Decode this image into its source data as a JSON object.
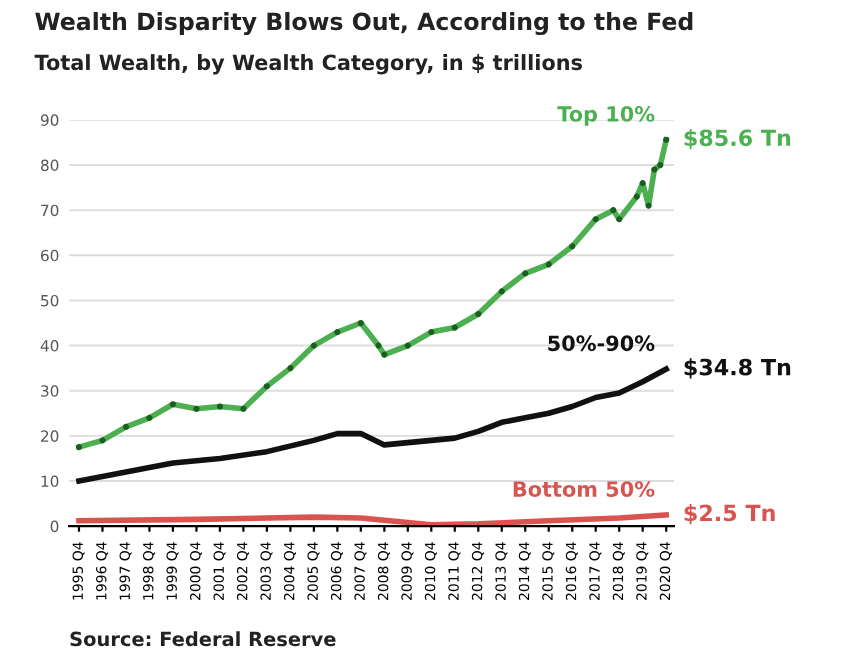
{
  "chart_data": {
    "type": "line",
    "title": "Wealth Disparity Blows Out, According to the Fed",
    "subtitle": "Total Wealth, by Wealth Category, in $ trillions",
    "series": [
      {
        "name": "Top 10%",
        "color": "#4caf50",
        "marker": "circle",
        "x": [
          "1995-11",
          "1996-11",
          "1997-11",
          "1998-11",
          "1999-11",
          "2000-11",
          "2001-11",
          "2002-11",
          "2003-11",
          "2004-11",
          "2005-11",
          "2006-11",
          "2007-11",
          "2008-08",
          "2008-11",
          "2009-11",
          "2010-11",
          "2011-11",
          "2012-11",
          "2013-11",
          "2014-11",
          "2015-11",
          "2016-11",
          "2017-11",
          "2018-08",
          "2018-11",
          "2019-08",
          "2019-11",
          "2020-02",
          "2020-05",
          "2020-08",
          "2020-11"
        ],
        "values": [
          17.5,
          19,
          22,
          24,
          27,
          26,
          26.5,
          26,
          31,
          35,
          40,
          43,
          45,
          40,
          38,
          40,
          43,
          44,
          47,
          52,
          56,
          58,
          62,
          68,
          70,
          68,
          73,
          76,
          71,
          79,
          80,
          85.6
        ]
      },
      {
        "name": "50%-90%",
        "color": "#111111",
        "marker": "none",
        "x": [
          "1995-11",
          "1997-11",
          "1999-11",
          "2001-11",
          "2003-11",
          "2005-11",
          "2006-11",
          "2007-11",
          "2008-11",
          "2009-11",
          "2010-11",
          "2011-11",
          "2012-11",
          "2013-11",
          "2014-11",
          "2015-11",
          "2016-11",
          "2017-11",
          "2018-11",
          "2019-11",
          "2020-11"
        ],
        "values": [
          10,
          12,
          14,
          15,
          16.5,
          19,
          20.5,
          20.5,
          18,
          18.5,
          19,
          19.5,
          21,
          23,
          24,
          25,
          26.5,
          28.5,
          29.5,
          32,
          34.8
        ]
      },
      {
        "name": "Bottom 50%",
        "color": "#d9534f",
        "marker": "none",
        "x": [
          "1995-11",
          "2000-11",
          "2005-11",
          "2007-11",
          "2010-11",
          "2012-11",
          "2015-11",
          "2018-11",
          "2020-11"
        ],
        "values": [
          1.2,
          1.5,
          2,
          1.8,
          0.3,
          0.5,
          1.2,
          1.8,
          2.5
        ]
      }
    ],
    "annotations": [
      {
        "text": "$85.6 Tn",
        "x": "2020-11",
        "y": 85.6
      },
      {
        "text": "$34.8 Tn",
        "x": "2020-11",
        "y": 34.8
      },
      {
        "text": "$2.5 Tn",
        "x": "2020-11",
        "y": 2.5
      },
      "Source: Federal Reserve"
    ],
    "xlim": [
      "1995-06",
      "2021-03"
    ],
    "xticks": [
      {
        "value": "1995-11",
        "label": "1995 Q4"
      },
      {
        "value": "1996-11",
        "label": "1996 Q4"
      },
      {
        "value": "1997-11",
        "label": "1997 Q4"
      },
      {
        "value": "1998-11",
        "label": "1998 Q4"
      },
      {
        "value": "1999-11",
        "label": "1999 Q4"
      },
      {
        "value": "2000-11",
        "label": "2000 Q4"
      },
      {
        "value": "2001-11",
        "label": "2001 Q4"
      },
      {
        "value": "2002-11",
        "label": "2002 Q4"
      },
      {
        "value": "2003-11",
        "label": "2003 Q4"
      },
      {
        "value": "2004-11",
        "label": "2004 Q4"
      },
      {
        "value": "2005-11",
        "label": "2005 Q4"
      },
      {
        "value": "2006-11",
        "label": "2006 Q4"
      },
      {
        "value": "2007-11",
        "label": "2007 Q4"
      },
      {
        "value": "2008-11",
        "label": "2008 Q4"
      },
      {
        "value": "2009-11",
        "label": "2009 Q4"
      },
      {
        "value": "2010-11",
        "label": "2010 Q4"
      },
      {
        "value": "2011-11",
        "label": "2011 Q4"
      },
      {
        "value": "2012-11",
        "label": "2012 Q4"
      },
      {
        "value": "2013-11",
        "label": "2013 Q4"
      },
      {
        "value": "2014-11",
        "label": "2014 Q4"
      },
      {
        "value": "2015-11",
        "label": "2015 Q4"
      },
      {
        "value": "2016-11",
        "label": "2016 Q4"
      },
      {
        "value": "2017-11",
        "label": "2017 Q4"
      },
      {
        "value": "2018-11",
        "label": "2018 Q4"
      },
      {
        "value": "2019-11",
        "label": "2019 Q4"
      },
      {
        "value": "2020-11",
        "label": "2020 Q4"
      }
    ],
    "ylim": [
      0,
      90
    ],
    "yticks": [
      0,
      10,
      20,
      30,
      40,
      50,
      60,
      70,
      80,
      90
    ],
    "grid": "y"
  }
}
